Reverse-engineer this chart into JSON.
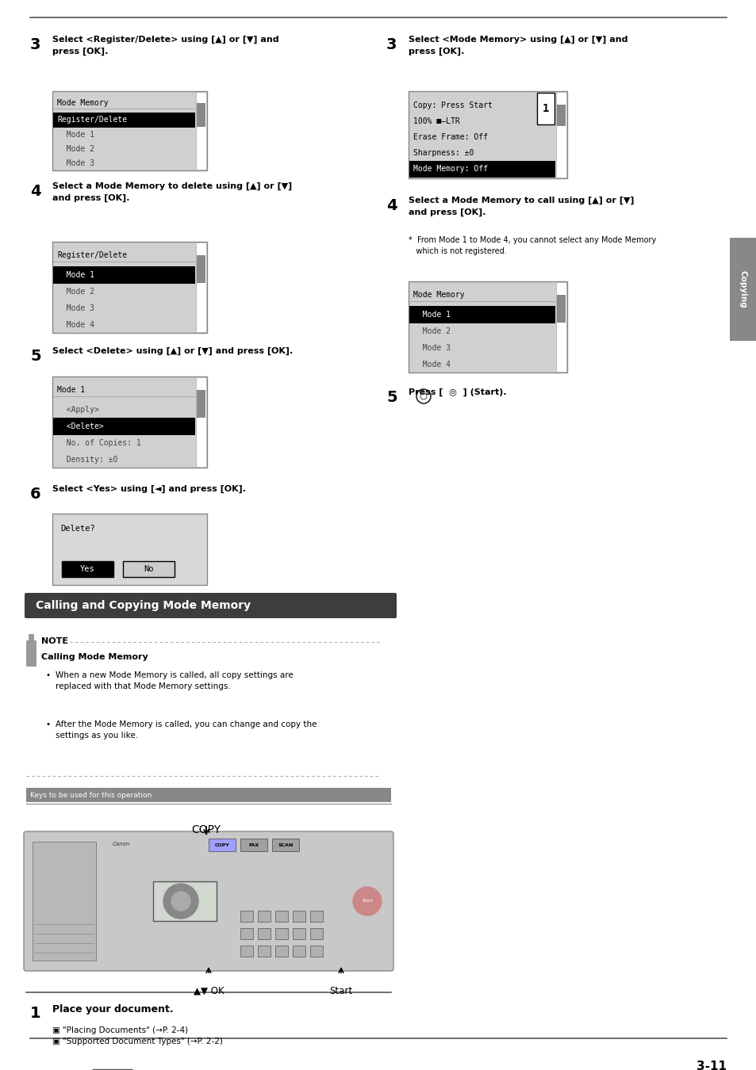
{
  "bg_color": "#ffffff",
  "page_num": "3-11",
  "tab_label": "Copying",
  "section_header": "Calling and Copying Mode Memory",
  "section_bg": "#3d3d3d",
  "section_text_color": "#ffffff",
  "note_header": "NOTE",
  "note_title": "Calling Mode Memory",
  "note_bullets": [
    "When a new Mode Memory is called, all copy settings are\nreplaced with that Mode Memory settings.",
    "After the Mode Memory is called, you can change and copy the\nsettings as you like."
  ],
  "keys_label": "Keys to be used for this operation",
  "copy_label": "COPY",
  "ok_label": "▲▼ OK",
  "start_label": "Start"
}
